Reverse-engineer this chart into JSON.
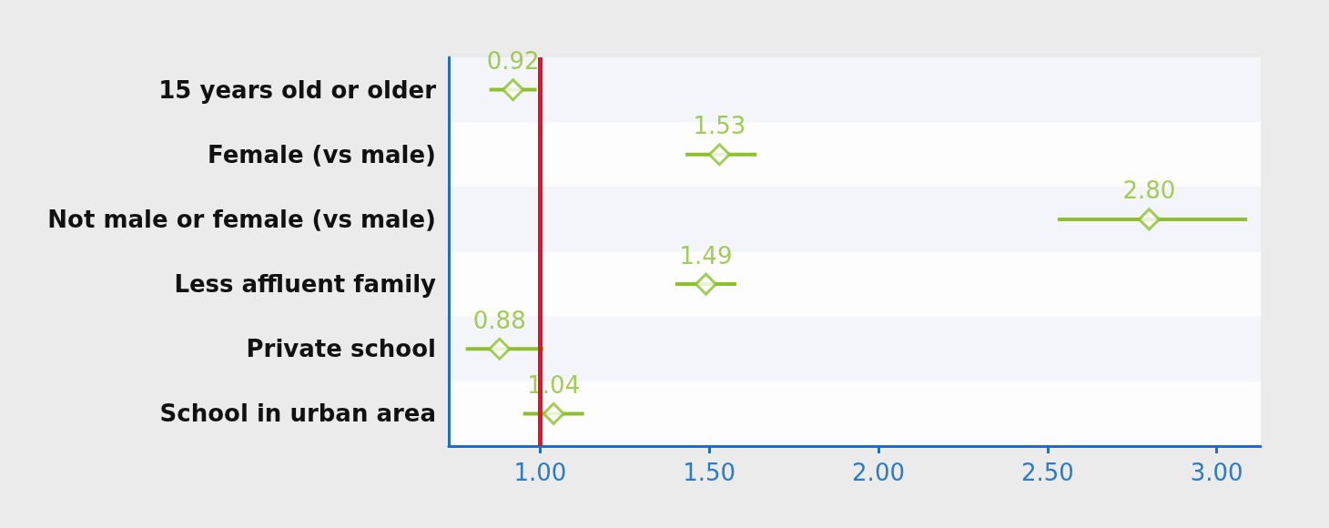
{
  "chart_data": {
    "type": "scatter",
    "orientation": "horizontal",
    "categories": [
      "15 years old or older",
      "Female (vs male)",
      "Not male or female (vs male)",
      "Less affluent family",
      "Private school",
      "School in urban area"
    ],
    "series": [
      {
        "color": "#8dbf2e",
        "values": [
          0.92,
          1.53,
          2.8,
          1.49,
          0.88,
          1.04
        ],
        "value_labels": [
          "0.92",
          "1.53",
          "2.80",
          "1.49",
          "0.88",
          "1.04"
        ],
        "errors": [
          [
            0.85,
            0.99
          ],
          [
            1.43,
            1.64
          ],
          [
            2.53,
            3.09
          ],
          [
            1.4,
            1.58
          ],
          [
            0.78,
            1.01
          ],
          [
            0.95,
            1.13
          ]
        ]
      }
    ],
    "marker": "diamond",
    "xlim": [
      0.73,
      3.13
    ],
    "xticks": [
      {
        "value": 1,
        "label": "1.00"
      },
      {
        "value": 1.5,
        "label": "1.50"
      },
      {
        "value": 2,
        "label": "2.00"
      },
      {
        "value": 2.5,
        "label": "2.50"
      },
      {
        "value": 3,
        "label": "3.00"
      }
    ],
    "ref_lines": [
      {
        "axis": "x",
        "value": 1,
        "label": null,
        "color": "#e3132b"
      }
    ]
  }
}
